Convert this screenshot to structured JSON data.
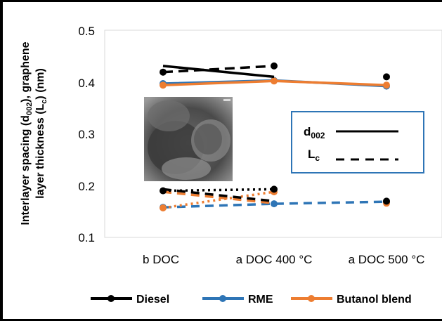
{
  "chart_data": {
    "type": "line",
    "categories": [
      "b DOC",
      "a DOC 400 °C",
      "a DOC 500 °C"
    ],
    "ylabel_line1": "Interlayer spacing (d",
    "ylabel_sub1": "002",
    "ylabel_mid": "), graphene",
    "ylabel_line2": "layer thickness (L",
    "ylabel_sub2": "c",
    "ylabel_end": ") (nm)",
    "ylim": [
      0.1,
      0.5
    ],
    "yticks": [
      "0.1",
      "0.2",
      "0.3",
      "0.4",
      "0.5"
    ],
    "grid": false,
    "legend_position": "bottom",
    "series": [
      {
        "name": "Diesel",
        "color": "#000000",
        "d002": [
          0.419,
          0.431,
          0.41
        ],
        "Lc": [
          0.419,
          0.431,
          0.41
        ],
        "d002_low": [
          0.19,
          0.193,
          0.17
        ],
        "Lc_low": [
          0.19,
          0.193,
          0.17
        ]
      },
      {
        "name": "RME",
        "color": "#2e75b6",
        "d002": [
          0.397,
          0.403,
          0.392
        ],
        "Lc": [
          0.397,
          0.403,
          0.392
        ],
        "d002_low": [
          0.158,
          0.165,
          0.169
        ],
        "Lc_low": [
          0.158,
          0.165,
          0.169
        ]
      },
      {
        "name": "Butanol blend",
        "color": "#ed7d31",
        "d002": [
          0.394,
          0.402,
          0.394
        ],
        "Lc": [
          0.394,
          0.402,
          0.394
        ],
        "d002_low": [
          0.157,
          0.188,
          0.166
        ],
        "Lc_low": [
          0.157,
          0.188,
          0.166
        ]
      }
    ],
    "upper_style": {
      "Diesel": "solid",
      "RME": "solid",
      "Butanol blend": "solid"
    },
    "inset_legend": {
      "d_label": "d",
      "d_sub": "002",
      "l_label": "L",
      "l_sub": "c"
    },
    "inset_image": "TEM micrograph"
  }
}
